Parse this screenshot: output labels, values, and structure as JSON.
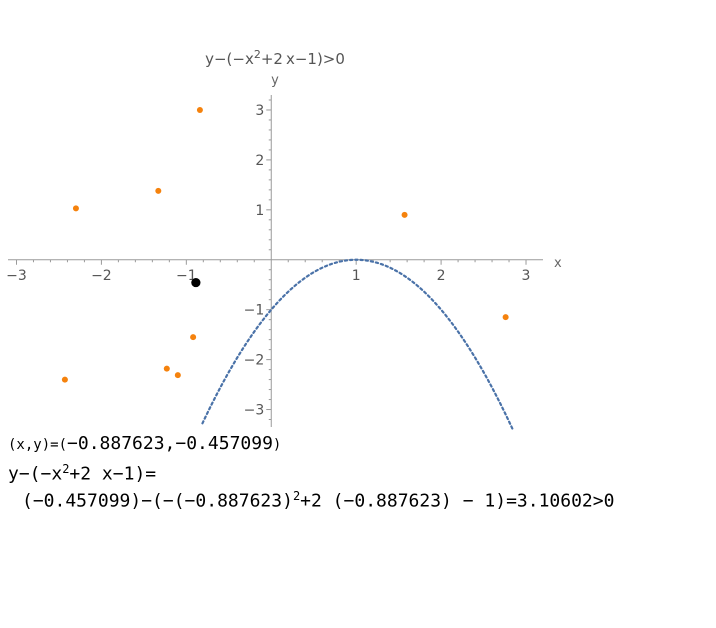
{
  "chart_data": {
    "type": "scatter",
    "title_parts": {
      "a": "y−(−x",
      "exp": "2",
      "b": "+2 x−1)>0"
    },
    "xlabel": "x",
    "ylabel": "y",
    "xlim": [
      -3.1,
      3.2
    ],
    "ylim": [
      -3.35,
      3.3
    ],
    "x_ticks": [
      -3,
      -2,
      -1,
      1,
      2,
      3
    ],
    "x_tick_labels": [
      "−3",
      "−2",
      "−1",
      "1",
      "2",
      "3"
    ],
    "y_ticks": [
      -3,
      -2,
      -1,
      1,
      2,
      3
    ],
    "y_tick_labels": [
      "−3",
      "−2",
      "−1",
      "1",
      "2",
      "3"
    ],
    "curve": {
      "name": "−x²+2x−1",
      "style": "dotted",
      "color": "#4a72a8",
      "x_range": [
        -0.81,
        2.85
      ]
    },
    "points": [
      {
        "x": -2.3,
        "y": 1.03
      },
      {
        "x": -1.33,
        "y": 1.38
      },
      {
        "x": -0.84,
        "y": 3.0
      },
      {
        "x": 1.57,
        "y": 0.9
      },
      {
        "x": 2.76,
        "y": -1.15
      },
      {
        "x": -2.43,
        "y": -2.4
      },
      {
        "x": -1.23,
        "y": -2.18
      },
      {
        "x": -1.1,
        "y": -2.31
      },
      {
        "x": -0.92,
        "y": -1.55
      }
    ],
    "point_color": "#f5820d",
    "selected_point": {
      "x": -0.887623,
      "y": -0.457099,
      "color": "#000000"
    },
    "grid": false
  },
  "readout": {
    "line1_prefix": "(x,y)=(",
    "line1_value": "−0.887623,−0.457099",
    "line1_suffix": ")",
    "line2_a": "y−(−x",
    "line2_exp": "2",
    "line2_b": "+2 x−1)=",
    "line3_a": "(−0.457099)−(−(−0.887623)",
    "line3_exp": "2",
    "line3_b": "+2 (−0.887623) − 1)=3.10602>0"
  }
}
